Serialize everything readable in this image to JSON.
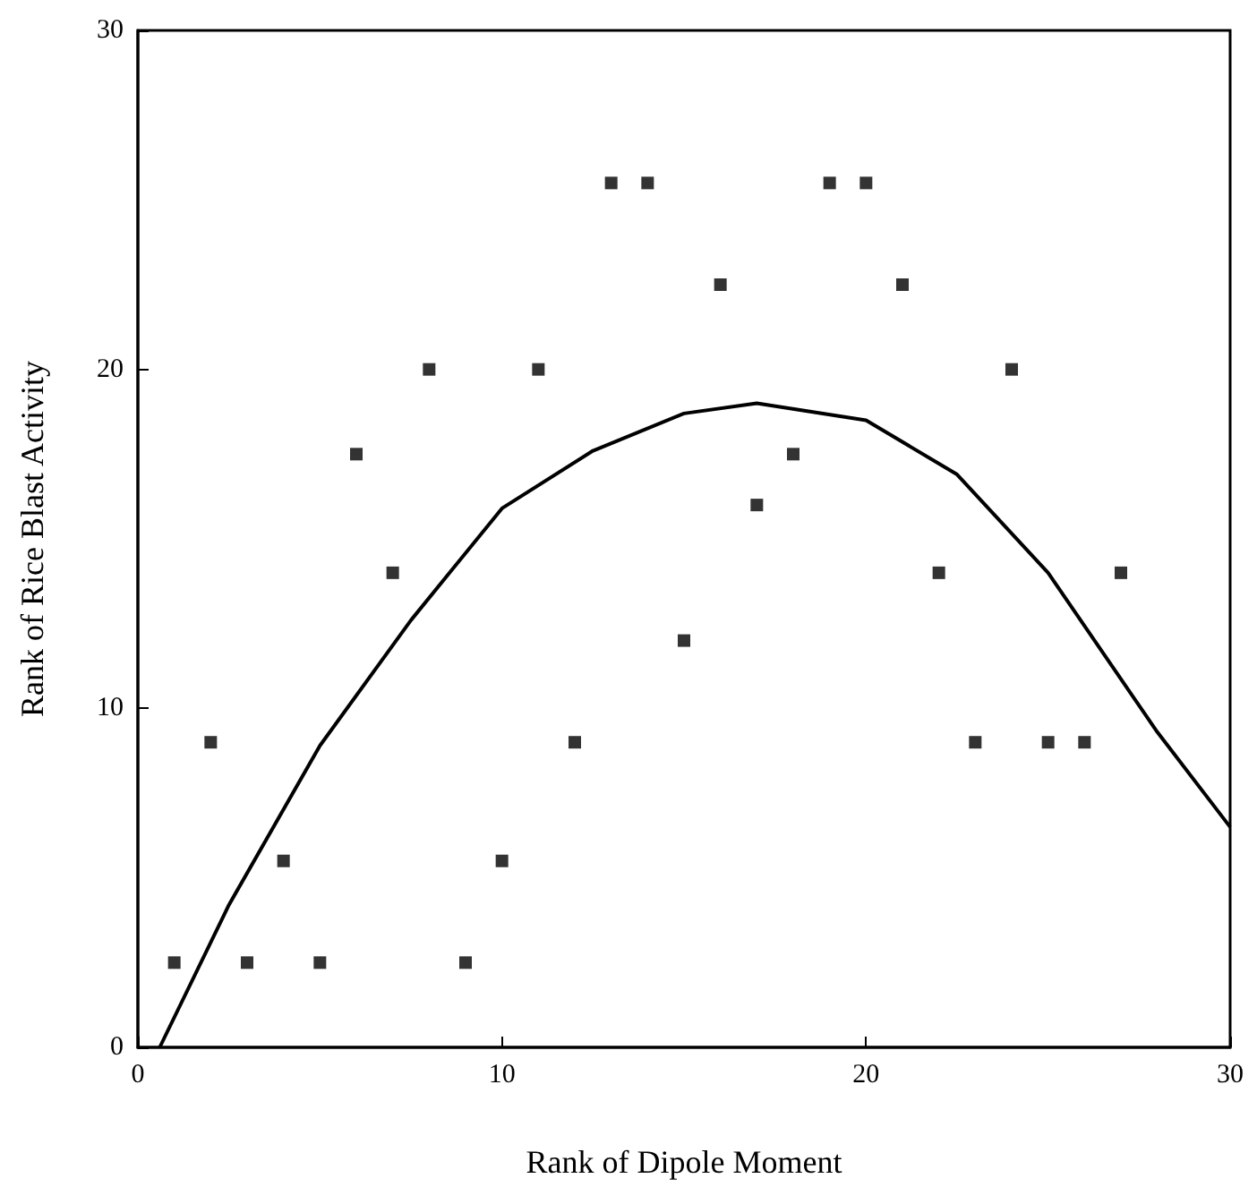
{
  "chart_data": {
    "type": "scatter",
    "xlabel": "Rank of Dipole Moment",
    "ylabel": "Rank of Rice Blast Activity",
    "xlim": [
      0,
      30
    ],
    "ylim": [
      0,
      30
    ],
    "xticks": [
      0,
      10,
      20,
      30
    ],
    "yticks": [
      0,
      10,
      20,
      30
    ],
    "grid": false,
    "marker": "square",
    "series": [
      {
        "color": "#000000",
        "x": [
          1,
          2,
          3,
          4,
          5,
          6,
          7,
          8,
          9,
          10,
          11,
          12,
          13,
          14,
          15,
          16,
          17,
          18,
          19,
          20,
          21,
          22,
          23,
          24,
          25,
          26,
          27
        ],
        "values": [
          2.5,
          9,
          2.5,
          5.5,
          2.5,
          17.5,
          14,
          20,
          2.5,
          5.5,
          20,
          9,
          25.5,
          25.5,
          12,
          22.5,
          16,
          17.5,
          25.5,
          25.5,
          22.5,
          14,
          9,
          20,
          9,
          9,
          14
        ]
      },
      {
        "type": "line",
        "color": "#000000",
        "marker": "none",
        "line_style": "solid",
        "x": [
          0.6,
          2.5,
          5,
          7.5,
          10,
          12.5,
          15,
          17,
          20,
          22.5,
          25,
          28,
          30
        ],
        "values": [
          0,
          4.2,
          8.9,
          12.6,
          15.9,
          17.6,
          18.7,
          19,
          18.5,
          16.9,
          14,
          9.3,
          6.5
        ]
      }
    ]
  }
}
